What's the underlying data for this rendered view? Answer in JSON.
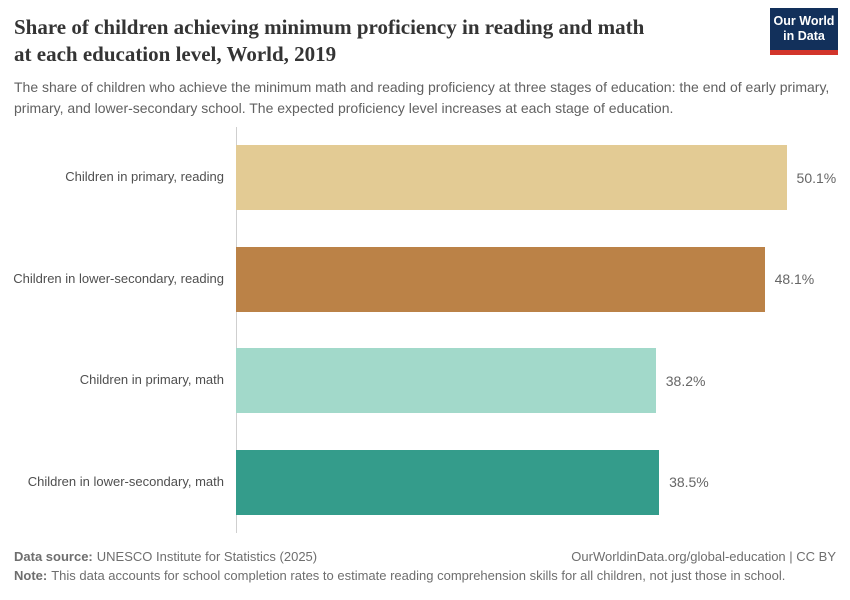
{
  "header": {
    "title_lines": [
      "Share of children achieving minimum proficiency in reading and math",
      "at each education level, World, 2019"
    ],
    "subtitle": "The share of children who achieve the minimum math and reading proficiency at three stages of education: the end of early primary, primary, and lower-secondary school. The expected proficiency level increases at each stage of education.",
    "logo": {
      "line1": "Our World",
      "line2": "in Data",
      "background_color": "#12305B",
      "accent_color": "#D2352B"
    }
  },
  "chart_data": {
    "type": "bar",
    "orientation": "horizontal",
    "title": "Share of children achieving minimum proficiency in reading and math at each education level, World, 2019",
    "subtitle": "The share of children who achieve the minimum math and reading proficiency at three stages of education: the end of early primary, primary, and lower-secondary school. The expected proficiency level increases at each stage of education.",
    "categories": [
      "Children in primary, reading",
      "Children in lower-secondary, reading",
      "Children in primary, math",
      "Children in lower-secondary, math"
    ],
    "values": [
      50.1,
      48.1,
      38.2,
      38.5
    ],
    "value_labels": [
      "50.1%",
      "48.1%",
      "38.2%",
      "38.5%"
    ],
    "colors": [
      "#E3CB94",
      "#BB8247",
      "#A2D9CA",
      "#349C8B"
    ],
    "xlabel": "",
    "ylabel": "",
    "xlim": [
      0,
      54.6
    ],
    "grid": false,
    "legend": "none"
  },
  "footer": {
    "datasource_label": "Data source:",
    "datasource": "UNESCO Institute for Statistics (2025)",
    "attribution": "OurWorldinData.org/global-education | CC BY",
    "note_label": "Note:",
    "note": "This data accounts for school completion rates to estimate reading comprehension skills for all children, not just those in school."
  }
}
